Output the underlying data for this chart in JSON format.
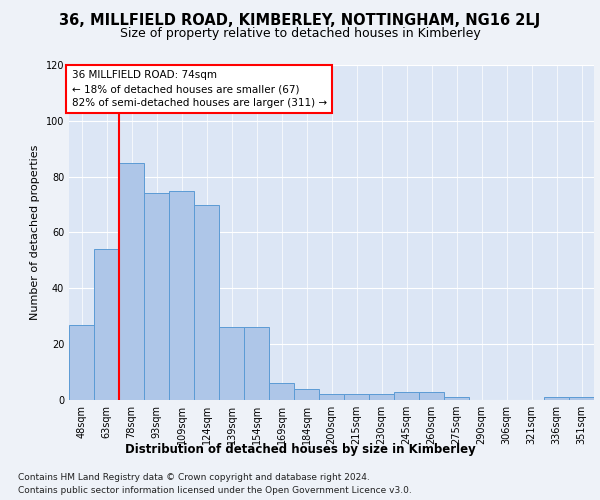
{
  "title": "36, MILLFIELD ROAD, KIMBERLEY, NOTTINGHAM, NG16 2LJ",
  "subtitle": "Size of property relative to detached houses in Kimberley",
  "xlabel": "Distribution of detached houses by size in Kimberley",
  "ylabel": "Number of detached properties",
  "footer_line1": "Contains HM Land Registry data © Crown copyright and database right 2024.",
  "footer_line2": "Contains public sector information licensed under the Open Government Licence v3.0.",
  "categories": [
    "48sqm",
    "63sqm",
    "78sqm",
    "93sqm",
    "109sqm",
    "124sqm",
    "139sqm",
    "154sqm",
    "169sqm",
    "184sqm",
    "200sqm",
    "215sqm",
    "230sqm",
    "245sqm",
    "260sqm",
    "275sqm",
    "290sqm",
    "306sqm",
    "321sqm",
    "336sqm",
    "351sqm"
  ],
  "values": [
    27,
    54,
    85,
    74,
    75,
    70,
    26,
    26,
    6,
    4,
    2,
    2,
    2,
    3,
    3,
    1,
    0,
    0,
    0,
    1,
    1
  ],
  "bar_color": "#aec6e8",
  "bar_edge_color": "#5b9bd5",
  "vline_x_index": 2,
  "vline_color": "red",
  "annotation_text": "36 MILLFIELD ROAD: 74sqm\n← 18% of detached houses are smaller (67)\n82% of semi-detached houses are larger (311) →",
  "annotation_box_color": "white",
  "annotation_box_edge_color": "red",
  "ylim": [
    0,
    120
  ],
  "yticks": [
    0,
    20,
    40,
    60,
    80,
    100,
    120
  ],
  "background_color": "#eef2f8",
  "plot_bg_color": "#dce6f5",
  "grid_color": "white",
  "title_fontsize": 10.5,
  "subtitle_fontsize": 9,
  "xlabel_fontsize": 8.5,
  "ylabel_fontsize": 8,
  "tick_fontsize": 7,
  "annotation_fontsize": 7.5,
  "footer_fontsize": 6.5
}
